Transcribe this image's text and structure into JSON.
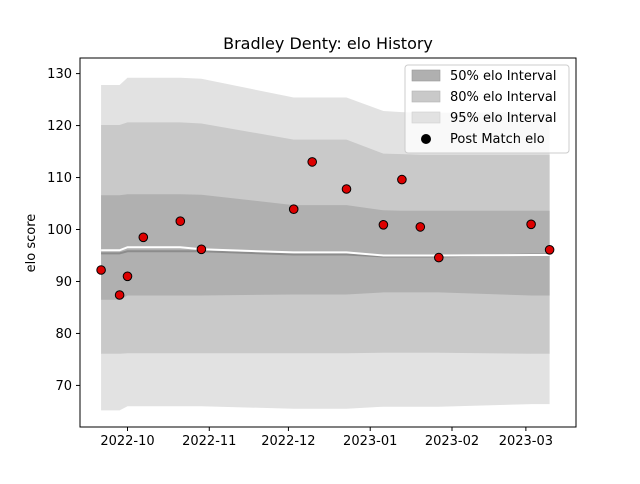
{
  "chart_data": {
    "type": "scatter",
    "title": "Bradley Denty: elo History",
    "xlabel": "",
    "ylabel": "elo score",
    "xlim": [
      "2022-09-13",
      "2023-03-20"
    ],
    "ylim": [
      62,
      133
    ],
    "grid": false,
    "legend_position": "top-right",
    "x_ticks": [
      {
        "date": "2022-10-01",
        "label": "2022-10"
      },
      {
        "date": "2022-11-01",
        "label": "2022-11"
      },
      {
        "date": "2022-12-01",
        "label": "2022-12"
      },
      {
        "date": "2023-01-01",
        "label": "2023-01"
      },
      {
        "date": "2023-02-01",
        "label": "2023-02"
      },
      {
        "date": "2023-03-01",
        "label": "2023-03"
      }
    ],
    "y_ticks": [
      70,
      80,
      90,
      100,
      110,
      120,
      130
    ],
    "legend": [
      {
        "label": "50% elo Interval",
        "kind": "band",
        "color": "#b0b0b0"
      },
      {
        "label": "80% elo Interval",
        "kind": "band",
        "color": "#c9c9c9"
      },
      {
        "label": "95% elo Interval",
        "kind": "band",
        "color": "#e2e2e2"
      },
      {
        "label": "Post Match elo",
        "kind": "marker",
        "color": "#000000"
      }
    ],
    "dates": [
      "2022-09-21",
      "2022-09-28",
      "2022-10-01",
      "2022-10-07",
      "2022-10-21",
      "2022-10-29",
      "2022-12-03",
      "2022-12-10",
      "2022-12-23",
      "2023-01-06",
      "2023-01-13",
      "2023-01-20",
      "2023-01-27",
      "2023-03-03",
      "2023-03-10"
    ],
    "band95": {
      "upper": [
        127.8,
        127.8,
        129.2,
        129.2,
        129.2,
        129.0,
        125.4,
        125.4,
        125.4,
        122.8,
        122.6,
        122.5,
        122.5,
        122.5,
        122.5
      ],
      "lower": [
        65.2,
        65.2,
        66.0,
        66.0,
        66.0,
        66.0,
        65.5,
        65.5,
        65.5,
        65.9,
        65.9,
        65.9,
        65.9,
        66.4,
        66.4
      ]
    },
    "band80": {
      "upper": [
        120.1,
        120.1,
        120.6,
        120.6,
        120.6,
        120.4,
        117.3,
        117.3,
        117.3,
        114.6,
        114.5,
        114.4,
        114.4,
        114.4,
        114.4
      ],
      "lower": [
        76.1,
        76.1,
        76.2,
        76.2,
        76.2,
        76.2,
        76.2,
        76.2,
        76.2,
        76.3,
        76.3,
        76.3,
        76.3,
        76.1,
        76.1
      ]
    },
    "band50": {
      "upper": [
        106.6,
        106.6,
        106.8,
        106.8,
        106.8,
        106.7,
        104.7,
        104.7,
        104.7,
        103.7,
        103.6,
        103.6,
        103.6,
        103.6,
        103.6
      ],
      "lower": [
        86.5,
        86.5,
        87.3,
        87.3,
        87.3,
        87.3,
        87.5,
        87.5,
        87.5,
        87.9,
        87.9,
        87.9,
        87.9,
        87.3,
        87.3
      ]
    },
    "mean_line": [
      95.4,
      95.4,
      95.8,
      95.8,
      95.8,
      95.8,
      95.2,
      95.2,
      95.2,
      94.8,
      94.8,
      94.8,
      94.8,
      95.2,
      95.2
    ],
    "white_line": [
      96.0,
      96.0,
      96.6,
      96.6,
      96.6,
      96.2,
      95.6,
      95.6,
      95.6,
      95.0,
      95.0,
      95.0,
      95.0,
      95.1,
      95.1
    ],
    "points": [
      {
        "date": "2022-09-21",
        "value": 92.2
      },
      {
        "date": "2022-09-28",
        "value": 87.4
      },
      {
        "date": "2022-10-01",
        "value": 91.0
      },
      {
        "date": "2022-10-07",
        "value": 98.5
      },
      {
        "date": "2022-10-21",
        "value": 101.6
      },
      {
        "date": "2022-10-29",
        "value": 96.2
      },
      {
        "date": "2022-12-03",
        "value": 103.9
      },
      {
        "date": "2022-12-10",
        "value": 113.0
      },
      {
        "date": "2022-12-23",
        "value": 107.8
      },
      {
        "date": "2023-01-06",
        "value": 100.9
      },
      {
        "date": "2023-01-13",
        "value": 109.6
      },
      {
        "date": "2023-01-20",
        "value": 100.5
      },
      {
        "date": "2023-01-27",
        "value": 94.6
      },
      {
        "date": "2023-03-03",
        "value": 101.0
      },
      {
        "date": "2023-03-10",
        "value": 96.1
      }
    ],
    "colors": {
      "band50": "#b0b0b0",
      "band80": "#c9c9c9",
      "band95": "#e2e2e2",
      "mean_line": "#8c8c8c",
      "white_line": "#ffffff",
      "point_fill": "#dd0000",
      "point_edge": "#000000"
    }
  }
}
